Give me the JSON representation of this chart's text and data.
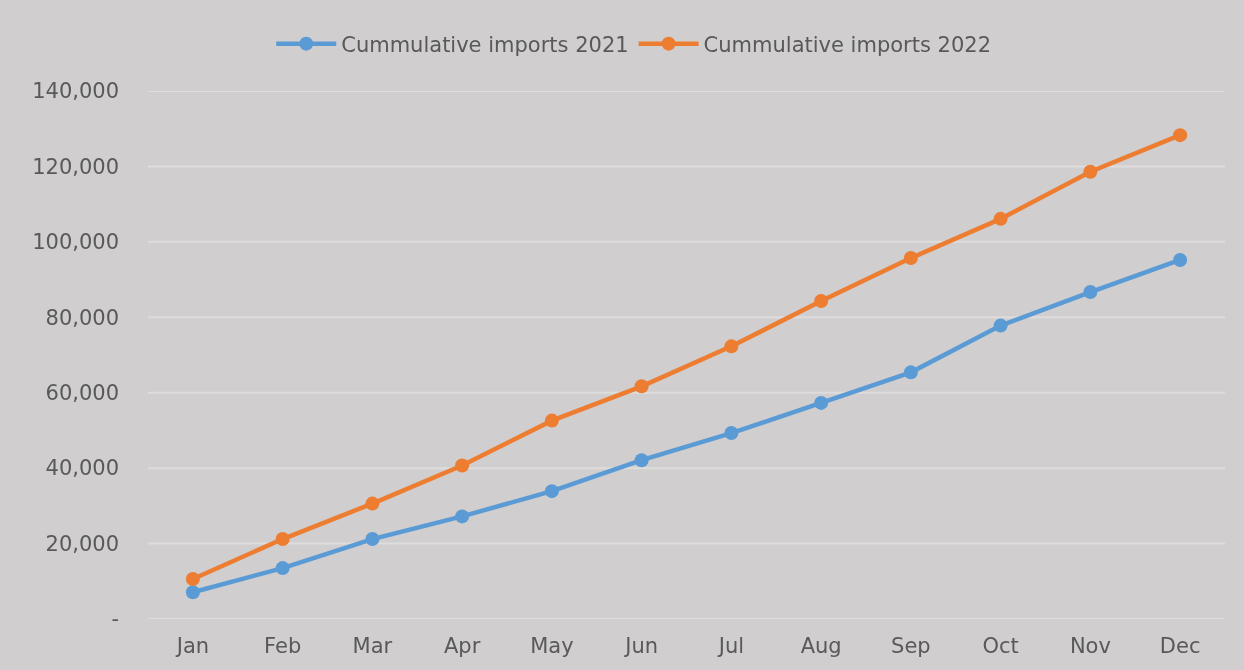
{
  "chart_data": {
    "type": "line",
    "categories": [
      "Jan",
      "Feb",
      "Mar",
      "Apr",
      "May",
      "Jun",
      "Jul",
      "Aug",
      "Sep",
      "Oct",
      "Nov",
      "Dec"
    ],
    "series": [
      {
        "name": "Cummulative imports 2021",
        "color": "#5b9bd5",
        "values": [
          7100,
          13500,
          21200,
          27200,
          33900,
          42100,
          49300,
          57300,
          65400,
          77800,
          86700,
          95200
        ]
      },
      {
        "name": "Cummulative imports 2022",
        "color": "#ed7d31",
        "values": [
          10600,
          21200,
          30600,
          40700,
          52600,
          61700,
          72300,
          84300,
          95700,
          106100,
          118600,
          128300
        ]
      }
    ],
    "ylim": [
      0,
      140000
    ],
    "yticks": [
      {
        "value": 0,
        "label": "-"
      },
      {
        "value": 20000,
        "label": "20,000"
      },
      {
        "value": 40000,
        "label": "40,000"
      },
      {
        "value": 60000,
        "label": "60,000"
      },
      {
        "value": 80000,
        "label": "80,000"
      },
      {
        "value": 100000,
        "label": "100,000"
      },
      {
        "value": 120000,
        "label": "120,000"
      },
      {
        "value": 140000,
        "label": "140,000"
      }
    ],
    "grid": "y",
    "legend": "top",
    "marker": "circle",
    "line_style": "solid"
  }
}
